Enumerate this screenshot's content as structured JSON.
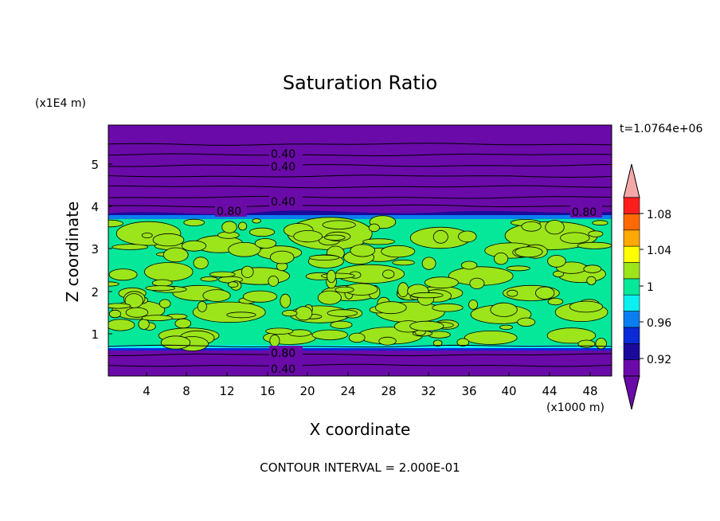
{
  "chart_data": {
    "type": "heatmap",
    "title": "Saturation Ratio",
    "xlabel": "X coordinate",
    "ylabel": "Z coordinate",
    "x_scale_note": "(x1000 m)",
    "y_scale_note": "(x1E4 m)",
    "time_label": "t=1.0764e+06",
    "footer": "CONTOUR INTERVAL = 2.000E-01",
    "xlim": [
      0,
      50
    ],
    "ylim": [
      0,
      5.9
    ],
    "x_ticks": [
      "4",
      "8",
      "12",
      "16",
      "20",
      "24",
      "28",
      "32",
      "36",
      "40",
      "44",
      "48"
    ],
    "y_ticks": [
      "1",
      "2",
      "3",
      "4",
      "5"
    ],
    "contour_levels": [
      0.4,
      0.4,
      0.4,
      0.8,
      0.8,
      0.8,
      0.4
    ],
    "contour_labels": [
      "0.40",
      "0.40",
      "0.40",
      "0.80",
      "0.80",
      "0.80",
      "0.40"
    ],
    "colorbar": {
      "tick_labels": [
        "1.08",
        "1.04",
        "1",
        "0.96",
        "0.92"
      ],
      "bins": [
        {
          "min": 0.9,
          "max": 0.92,
          "color": "#6a0aa8"
        },
        {
          "min": 0.92,
          "max": 0.94,
          "color": "#1a0a9c"
        },
        {
          "min": 0.94,
          "max": 0.96,
          "color": "#0a2ad6"
        },
        {
          "min": 0.96,
          "max": 0.98,
          "color": "#0a7ef0"
        },
        {
          "min": 0.98,
          "max": 1.0,
          "color": "#0af0f0"
        },
        {
          "min": 1.0,
          "max": 1.02,
          "color": "#05e89a"
        },
        {
          "min": 1.02,
          "max": 1.04,
          "color": "#9ce51a"
        },
        {
          "min": 1.04,
          "max": 1.06,
          "color": "#ffff00"
        },
        {
          "min": 1.06,
          "max": 1.08,
          "color": "#ffa800"
        },
        {
          "min": 1.08,
          "max": 1.1,
          "color": "#ff6a00"
        },
        {
          "min": 1.1,
          "max": 1.12,
          "color": "#ff1e1e"
        }
      ],
      "under_color": "#6a0aa8",
      "over_color": "#f5a8a8"
    },
    "regions": [
      {
        "name": "upper dry layer",
        "z_range": [
          3.8,
          5.9
        ],
        "value_range": "< 0.92",
        "color": "#6a0aa8"
      },
      {
        "name": "cloud layer",
        "z_range": [
          0.65,
          3.8
        ],
        "value_range": "0.98 - 1.04",
        "colors": [
          "#05e89a",
          "#9ce51a"
        ]
      },
      {
        "name": "lower dry layer",
        "z_range": [
          0,
          0.65
        ],
        "value_range": "< 0.92",
        "color": "#6a0aa8"
      }
    ]
  }
}
